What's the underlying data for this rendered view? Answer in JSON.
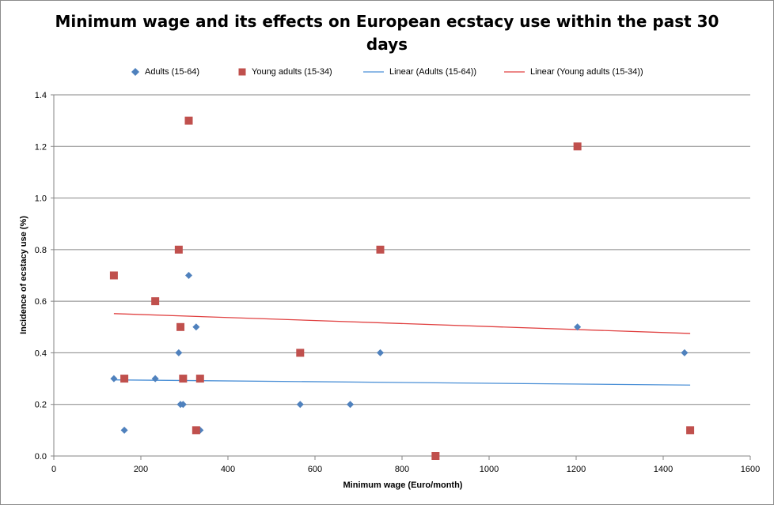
{
  "chart_data": {
    "type": "scatter",
    "title": "Minimum wage and its effects on European ecstacy use within the past 30 days",
    "xlabel": "Minimum wage (Euro/month)",
    "ylabel": "Incidence of ecstacy use (%)",
    "xlim": [
      0,
      1600
    ],
    "ylim": [
      0,
      1.4
    ],
    "xticks": [
      0,
      200,
      400,
      600,
      800,
      1000,
      1200,
      1400,
      1600
    ],
    "yticks": [
      0.0,
      0.2,
      0.4,
      0.6,
      0.8,
      1.0,
      1.2,
      1.4
    ],
    "ytick_labels": [
      "0.0",
      "0.2",
      "0.4",
      "0.6",
      "0.8",
      "1.0",
      "1.2",
      "1.4"
    ],
    "grid": "horizontal",
    "legend_position": "top",
    "series": [
      {
        "name": "Adults (15-64)",
        "marker": "diamond",
        "color": "#4f81bd",
        "points": [
          {
            "x": 138,
            "y": 0.3
          },
          {
            "x": 162,
            "y": 0.1
          },
          {
            "x": 233,
            "y": 0.3
          },
          {
            "x": 287,
            "y": 0.4
          },
          {
            "x": 291,
            "y": 0.2
          },
          {
            "x": 297,
            "y": 0.2
          },
          {
            "x": 310,
            "y": 0.7
          },
          {
            "x": 327,
            "y": 0.5
          },
          {
            "x": 336,
            "y": 0.1
          },
          {
            "x": 566,
            "y": 0.2
          },
          {
            "x": 681,
            "y": 0.2
          },
          {
            "x": 750,
            "y": 0.4
          },
          {
            "x": 1203,
            "y": 0.5
          },
          {
            "x": 1449,
            "y": 0.4
          }
        ]
      },
      {
        "name": "Young adults (15-34)",
        "marker": "square",
        "color": "#c0504d",
        "points": [
          {
            "x": 138,
            "y": 0.7
          },
          {
            "x": 162,
            "y": 0.3
          },
          {
            "x": 233,
            "y": 0.6
          },
          {
            "x": 287,
            "y": 0.8
          },
          {
            "x": 291,
            "y": 0.5
          },
          {
            "x": 297,
            "y": 0.3
          },
          {
            "x": 310,
            "y": 1.3
          },
          {
            "x": 327,
            "y": 0.1
          },
          {
            "x": 336,
            "y": 0.3
          },
          {
            "x": 566,
            "y": 0.4
          },
          {
            "x": 750,
            "y": 0.8
          },
          {
            "x": 877,
            "y": 0.0
          },
          {
            "x": 1203,
            "y": 1.2
          },
          {
            "x": 1462,
            "y": 0.1
          }
        ]
      }
    ],
    "trendlines": [
      {
        "name": "Linear (Adults (15-64))",
        "color": "#4a8fd6",
        "x": [
          138,
          1462
        ],
        "y": [
          0.295,
          0.275
        ]
      },
      {
        "name": "Linear (Young adults (15-34))",
        "color": "#e04040",
        "x": [
          138,
          1462
        ],
        "y": [
          0.552,
          0.475
        ]
      }
    ]
  }
}
